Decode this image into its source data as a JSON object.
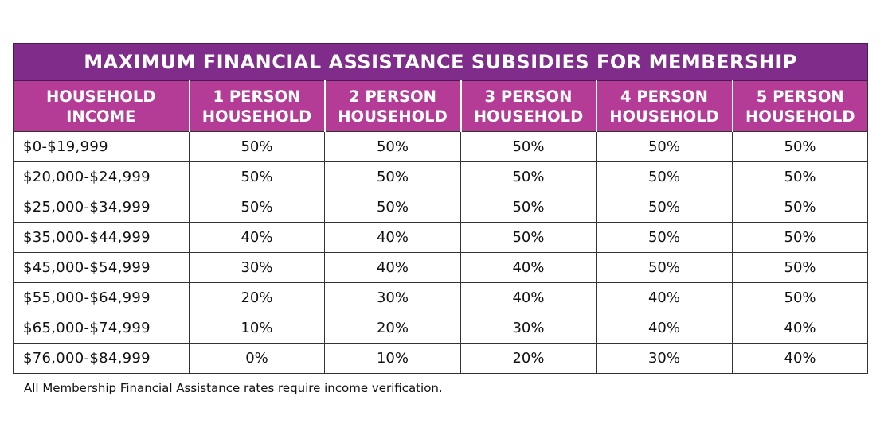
{
  "title": "MAXIMUM FINANCIAL ASSISTANCE SUBSIDIES FOR MEMBERSHIP",
  "columns": [
    {
      "line1": "HOUSEHOLD",
      "line2": "INCOME"
    },
    {
      "line1": "1 PERSON",
      "line2": "HOUSEHOLD"
    },
    {
      "line1": "2 PERSON",
      "line2": "HOUSEHOLD"
    },
    {
      "line1": "3 PERSON",
      "line2": "HOUSEHOLD"
    },
    {
      "line1": "4 PERSON",
      "line2": "HOUSEHOLD"
    },
    {
      "line1": "5 PERSON",
      "line2": "HOUSEHOLD"
    }
  ],
  "rows": [
    {
      "income": "$0-$19,999",
      "values": [
        "50%",
        "50%",
        "50%",
        "50%",
        "50%"
      ]
    },
    {
      "income": "$20,000-$24,999",
      "values": [
        "50%",
        "50%",
        "50%",
        "50%",
        "50%"
      ]
    },
    {
      "income": "$25,000-$34,999",
      "values": [
        "50%",
        "50%",
        "50%",
        "50%",
        "50%"
      ]
    },
    {
      "income": "$35,000-$44,999",
      "values": [
        "40%",
        "40%",
        "50%",
        "50%",
        "50%"
      ]
    },
    {
      "income": "$45,000-$54,999",
      "values": [
        "30%",
        "40%",
        "40%",
        "50%",
        "50%"
      ]
    },
    {
      "income": "$55,000-$64,999",
      "values": [
        "20%",
        "30%",
        "40%",
        "40%",
        "50%"
      ]
    },
    {
      "income": "$65,000-$74,999",
      "values": [
        "10%",
        "20%",
        "30%",
        "40%",
        "40%"
      ]
    },
    {
      "income": "$76,000-$84,999",
      "values": [
        "0%",
        "10%",
        "20%",
        "30%",
        "40%"
      ]
    }
  ],
  "footnote": "All Membership Financial Assistance rates require income verification.",
  "colors": {
    "title_bg": "#7f2c8a",
    "header_bg": "#b43c96",
    "header_text": "#ffffff"
  }
}
